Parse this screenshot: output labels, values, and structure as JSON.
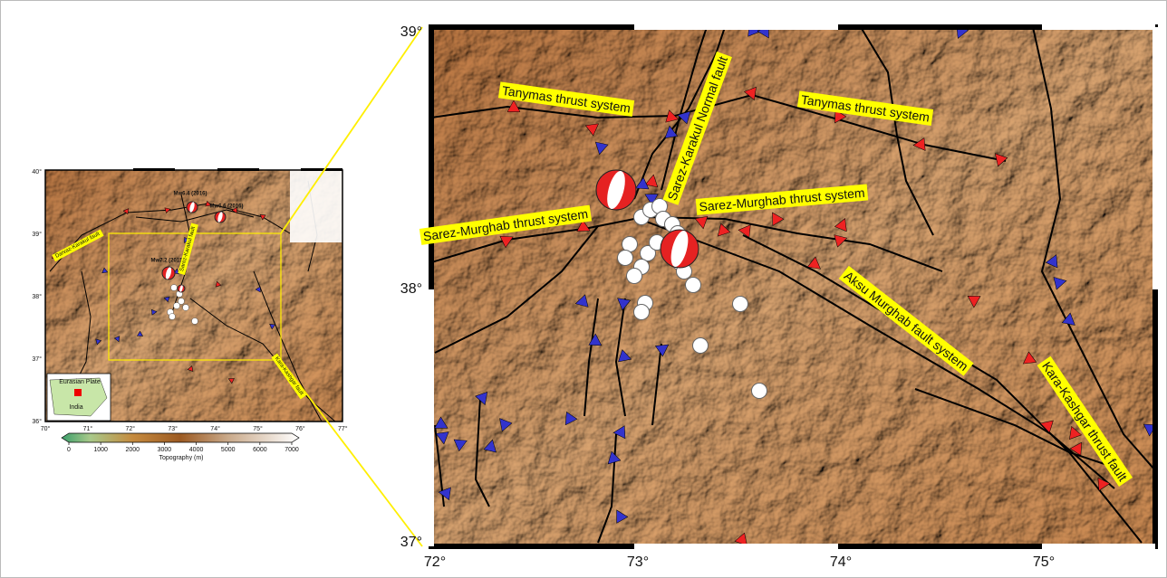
{
  "overview_map": {
    "lat_labels": [
      "40°",
      "39°",
      "38°",
      "37°",
      "36°"
    ],
    "lon_labels": [
      "70°",
      "71°",
      "72°",
      "73°",
      "74°",
      "75°",
      "76°",
      "77°"
    ],
    "event_labels": [
      "Mw6.4 (2016)",
      "Mw6.6 (2016)",
      "Mw7.2 (2015)"
    ],
    "fault_labels": [
      "Darvaz-Karakul fault",
      "Sarez-Karakul fault",
      "Kara-Kashgar fault"
    ],
    "inset_labels": [
      "Eurasian Plate",
      "India"
    ],
    "colorbar": {
      "ticks": [
        0,
        1000,
        2000,
        3000,
        4000,
        5000,
        6000,
        7000
      ],
      "label": "Topography (m)"
    }
  },
  "detail_map": {
    "lat_labels": [
      "39°",
      "38°",
      "37°"
    ],
    "lon_labels": [
      "72°",
      "73°",
      "74°",
      "75°"
    ],
    "fault_labels": [
      "Tanymas thrust system",
      "Tanymas thrust system",
      "Sarez-Karakul Normal fault",
      "Sarez-Murghab thrust system",
      "Sarez-Murghab thrust system",
      "Aksu Murghab fault system",
      "Kara-Kashgar thrust fault"
    ]
  }
}
